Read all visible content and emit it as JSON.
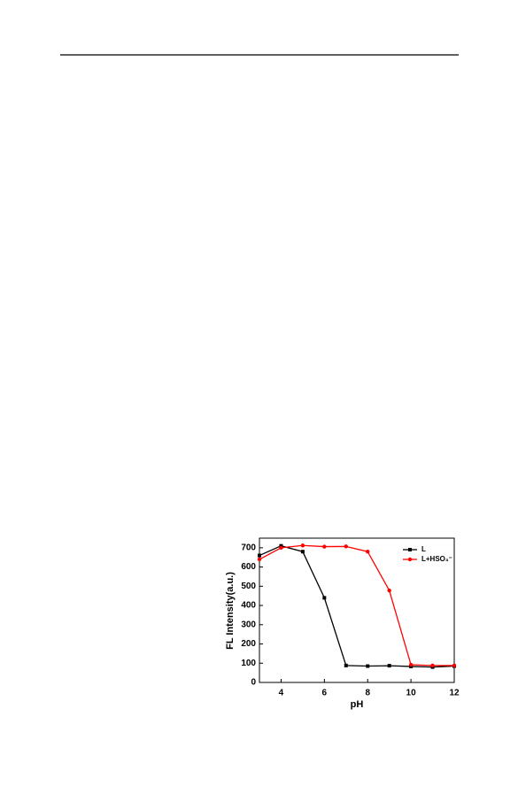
{
  "chart_data": {
    "type": "line",
    "x_label": "pH",
    "y_label": "FL Intensity(a.u.)",
    "x": [
      3,
      4,
      5,
      6,
      7,
      8,
      9,
      10,
      11,
      12
    ],
    "series": [
      {
        "name": "L",
        "color": "#000000",
        "marker": "square",
        "values": [
          660,
          710,
          680,
          440,
          88,
          85,
          87,
          83,
          80,
          85
        ]
      },
      {
        "name": "L+HSO₃⁻",
        "color": "#ff0000",
        "marker": "circle",
        "values": [
          640,
          700,
          712,
          706,
          707,
          680,
          478,
          92,
          88,
          88
        ]
      }
    ],
    "xlim": [
      3,
      12
    ],
    "xticks": [
      4,
      6,
      8,
      10,
      12
    ],
    "ylim": [
      0,
      750
    ],
    "yticks": [
      0,
      100,
      200,
      300,
      400,
      500,
      600,
      700
    ],
    "legend": "upper right",
    "grid": false
  }
}
